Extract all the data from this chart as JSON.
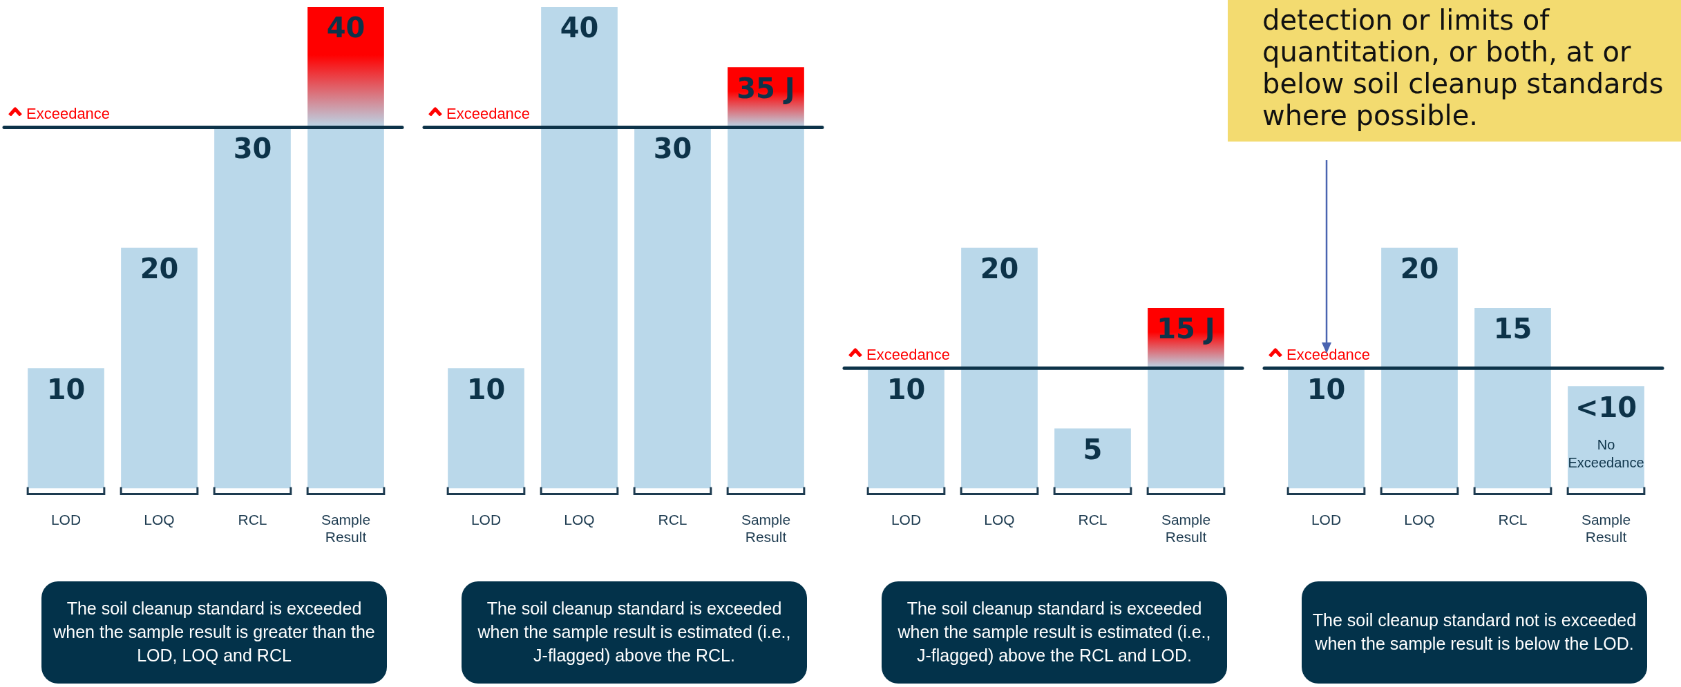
{
  "chart_data": [
    {
      "type": "bar",
      "categories": [
        "LOD",
        "LOQ",
        "RCL",
        "Sample Result"
      ],
      "tick_labels": "x",
      "values": [
        10,
        20,
        30,
        40
      ],
      "colors": [
        "#bad8ea",
        "#bad8ea",
        "#bad8ea",
        "#ff0000"
      ],
      "value_labels": [
        "10",
        "20",
        "30",
        "40"
      ],
      "ref_lines": [
        {
          "axis": "y",
          "value": 30,
          "label": "Exceedance",
          "color": "#0d3349"
        }
      ],
      "annotations": [
        "The soil cleanup standard is exceeded when the sample result is greater than the LOD, LOQ and RCL"
      ]
    },
    {
      "type": "bar",
      "categories": [
        "LOD",
        "LOQ",
        "RCL",
        "Sample Result"
      ],
      "tick_labels": "x",
      "values": [
        10,
        40,
        30,
        35
      ],
      "colors": [
        "#bad8ea",
        "#bad8ea",
        "#bad8ea",
        "#ff0000"
      ],
      "value_labels": [
        "10",
        "40",
        "30",
        "35 J"
      ],
      "ref_lines": [
        {
          "axis": "y",
          "value": 30,
          "label": "Exceedance",
          "color": "#0d3349"
        }
      ],
      "annotations": [
        "The soil cleanup standard is exceeded when the sample result is estimated (i.e., J-flagged) above the RCL."
      ]
    },
    {
      "type": "bar",
      "categories": [
        "LOD",
        "LOQ",
        "RCL",
        "Sample Result"
      ],
      "tick_labels": "x",
      "values": [
        10,
        20,
        5,
        15
      ],
      "colors": [
        "#bad8ea",
        "#bad8ea",
        "#bad8ea",
        "#ff0000"
      ],
      "value_labels": [
        "10",
        "20",
        "5",
        "15 J"
      ],
      "ref_lines": [
        {
          "axis": "y",
          "value": 10,
          "label": "Exceedance",
          "color": "#0d3349"
        }
      ],
      "annotations": [
        "The soil cleanup standard is exceeded when the sample result is estimated (i.e., J-flagged) above the RCL and LOD."
      ]
    },
    {
      "type": "bar",
      "categories": [
        "LOD",
        "LOQ",
        "RCL",
        "Sample Result"
      ],
      "tick_labels": "x",
      "values": [
        10,
        20,
        15,
        8.5
      ],
      "colors": [
        "#bad8ea",
        "#bad8ea",
        "#bad8ea",
        "#bad8ea"
      ],
      "value_labels": [
        "10",
        "20",
        "15",
        "<10"
      ],
      "ref_lines": [
        {
          "axis": "y",
          "value": 10,
          "label": "Exceedance",
          "color": "#0d3349"
        }
      ],
      "annotations": [
        "The soil cleanup standard not is exceeded when the sample result is below the LOD.",
        "No Exceedance",
        "detection or limits of quantitation, or both, at or below soil cleanup standards where possible."
      ]
    }
  ]
}
